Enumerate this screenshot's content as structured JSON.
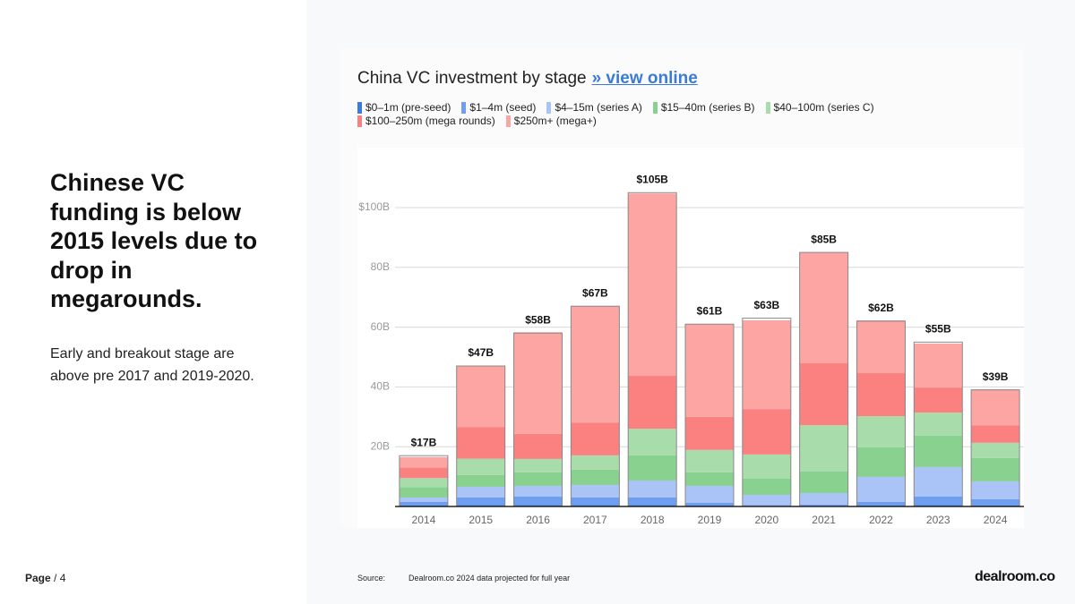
{
  "slide": {
    "headline": "Chinese VC funding is below 2015 levels due to drop in megarounds.",
    "body": "Early and breakout stage are above pre 2017 and 2019-2020.",
    "page_label": "Page",
    "page_number": "/ 4",
    "source_label": "Source:",
    "source_text": "Dealroom.co  2024 data projected for full year",
    "logo": "dealroom.co"
  },
  "chart_data": {
    "type": "bar",
    "stacked": true,
    "title": "China VC investment by stage",
    "link_text": "» view online",
    "categories": [
      "2014",
      "2015",
      "2016",
      "2017",
      "2018",
      "2019",
      "2020",
      "2021",
      "2022",
      "2023",
      "2024"
    ],
    "series": [
      {
        "name": "$0–1m (pre-seed)",
        "color": "#3b7be0",
        "values": [
          0.3,
          0.5,
          0.5,
          0.5,
          0.5,
          0.3,
          0.2,
          0.2,
          0.3,
          0.5,
          0.4
        ]
      },
      {
        "name": "$1–4m (seed)",
        "color": "#6d9ef0",
        "values": [
          1.2,
          2.5,
          2.8,
          2.5,
          2.5,
          0.9,
          0.3,
          0.4,
          1.2,
          2.8,
          2
        ]
      },
      {
        "name": "$4–15m (series A)",
        "color": "#abc4f7",
        "values": [
          1.5,
          3.6,
          3.6,
          4.2,
          5.7,
          5.7,
          3.4,
          3.9,
          8.4,
          9.9,
          6
        ]
      },
      {
        "name": "$15–40m (series B)",
        "color": "#88d18f",
        "values": [
          3.5,
          3.9,
          4.5,
          5.1,
          8.4,
          4.5,
          5.4,
          7.2,
          9.9,
          10.5,
          7.8
        ]
      },
      {
        "name": "$40–100m (series C)",
        "color": "#a8dcaa",
        "values": [
          3,
          5.5,
          4.5,
          4.8,
          8.9,
          7.5,
          8.1,
          15.5,
          10.4,
          7.7,
          5.1
        ]
      },
      {
        "name": "$100–250m (mega rounds)",
        "color": "#fb8080",
        "values": [
          3.5,
          10.6,
          8.4,
          11,
          17.7,
          11.1,
          15.2,
          20.7,
          14.4,
          8.4,
          5.9
        ]
      },
      {
        "name": "$250m+ (mega+)",
        "color": "#fca5a3",
        "values": [
          3.5,
          20.4,
          34,
          39,
          61,
          31,
          29.7,
          37.1,
          17.7,
          14.7,
          12
        ]
      }
    ],
    "totals": {
      "values": [
        17,
        47,
        58,
        67,
        105,
        61,
        63,
        85,
        62,
        55,
        39
      ],
      "value_labels": [
        "$17B",
        "$47B",
        "$58B",
        "$67B",
        "$105B",
        "$61B",
        "$63B",
        "$85B",
        "$62B",
        "$55B",
        "$39B"
      ]
    },
    "ylim": [
      0,
      120
    ],
    "yticks": [
      {
        "value": 20,
        "label": "20B"
      },
      {
        "value": 40,
        "label": "40B"
      },
      {
        "value": 60,
        "label": "60B"
      },
      {
        "value": 80,
        "label": "80B"
      },
      {
        "value": 100,
        "label": "$100B"
      }
    ],
    "grid": true
  }
}
